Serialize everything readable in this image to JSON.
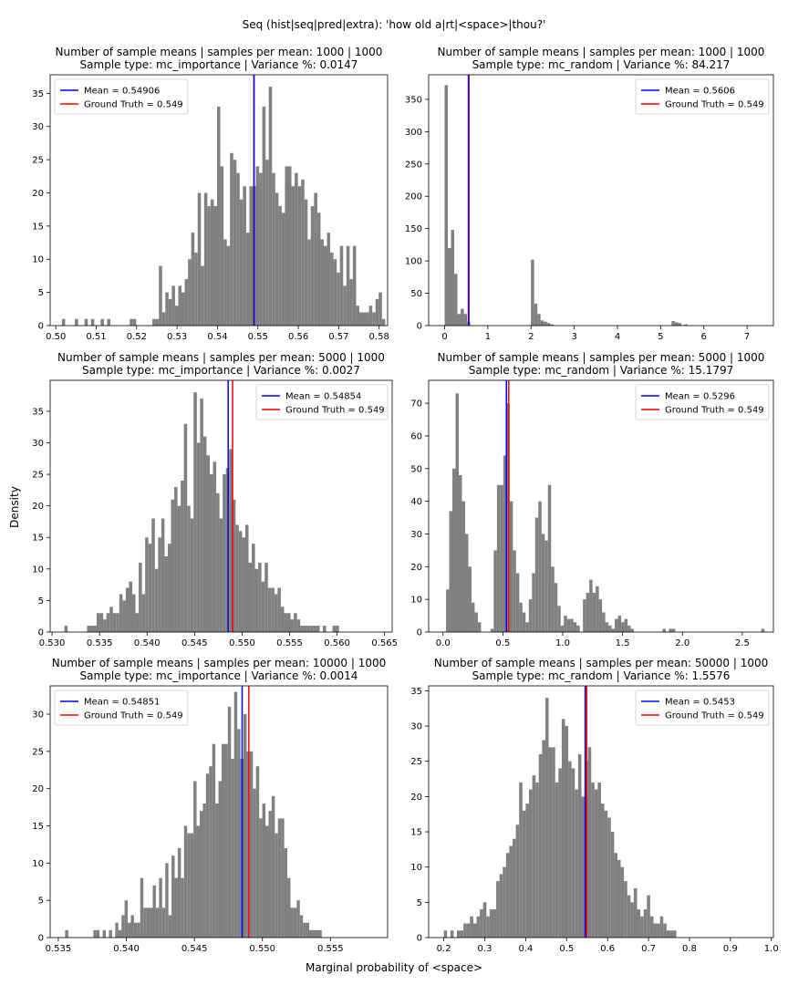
{
  "figure": {
    "suptitle": "Seq (hist|seq|pred|extra): 'how old a|rt|<space>|thou?'",
    "ylabel": "Density",
    "xlabel": "Marginal probability of <space>"
  },
  "colors": {
    "bar": "#808080",
    "mean": "#0000ff",
    "truth": "#ff0000"
  },
  "chart_data": [
    {
      "type": "bar",
      "title_line1": "Number of sample means | samples per mean: 1000 | 1000",
      "title_line2": "Sample type: mc_importance | Variance %: 0.0147",
      "xlim": [
        0.4986,
        0.5821
      ],
      "ylim": [
        0,
        37.8
      ],
      "xticks": [
        0.5,
        0.51,
        0.52,
        0.53,
        0.54,
        0.55,
        0.56,
        0.57,
        0.58
      ],
      "xtick_labels": [
        "0.50",
        "0.51",
        "0.52",
        "0.53",
        "0.54",
        "0.55",
        "0.56",
        "0.57",
        "0.58"
      ],
      "yticks": [
        0,
        5,
        10,
        15,
        20,
        25,
        30,
        35
      ],
      "bins_x0": 0.5015,
      "bins_width": 0.0008,
      "values": [
        1,
        0,
        0,
        0,
        1,
        0,
        0,
        1,
        0,
        1,
        0,
        0,
        1,
        0,
        1,
        0,
        0,
        0,
        0,
        0,
        0,
        1,
        1,
        0,
        0,
        0,
        0,
        0,
        1,
        1,
        9,
        2,
        5,
        4,
        6,
        3,
        6,
        5,
        7,
        10,
        14,
        11,
        20,
        9,
        20,
        18,
        19,
        18,
        33,
        24,
        13,
        12,
        26,
        25,
        23,
        19,
        21,
        14,
        21,
        21,
        24,
        23,
        33,
        25,
        36,
        23,
        20,
        18,
        17,
        24,
        24,
        21,
        23,
        21,
        22,
        19,
        13,
        18,
        20,
        17,
        13,
        12,
        14,
        11,
        10,
        8,
        12,
        6,
        12,
        7,
        12,
        3,
        2,
        2,
        2,
        3,
        2,
        4,
        5,
        1
      ],
      "mean": 0.54906,
      "truth": 0.549,
      "legend_position": "top-left",
      "legend": [
        "Mean = 0.54906",
        "Ground Truth = 0.549"
      ]
    },
    {
      "type": "bar",
      "title_line1": "Number of sample means | samples per mean: 1000 | 1000",
      "title_line2": "Sample type: mc_random | Variance %: 84.217",
      "xlim": [
        -0.37,
        7.61
      ],
      "ylim": [
        0,
        388
      ],
      "xticks": [
        0,
        1,
        2,
        3,
        4,
        5,
        6,
        7
      ],
      "xtick_labels": [
        "0",
        "1",
        "2",
        "3",
        "4",
        "5",
        "6",
        "7"
      ],
      "yticks": [
        0,
        50,
        100,
        150,
        200,
        250,
        300,
        350
      ],
      "bins_x0": 0.0,
      "bins_width": 0.074,
      "values": [
        372,
        120,
        148,
        80,
        18,
        26,
        18,
        6,
        0,
        0,
        0,
        0,
        0,
        0,
        0,
        0,
        0,
        0,
        0,
        0,
        0,
        0,
        0,
        0,
        0,
        0,
        0,
        102,
        34,
        18,
        8,
        6,
        4,
        2,
        0,
        0,
        0,
        0,
        0,
        0,
        0,
        0,
        0,
        0,
        0,
        0,
        0,
        0,
        0,
        0,
        0,
        0,
        0,
        0,
        0,
        0,
        0,
        0,
        0,
        0,
        0,
        0,
        0,
        0,
        0,
        0,
        0,
        0,
        0,
        0,
        0,
        7,
        5,
        4,
        0,
        2
      ],
      "mean": 0.5606,
      "truth": 0.549,
      "legend_position": "top-right",
      "legend": [
        "Mean = 0.5606",
        "Ground Truth = 0.549"
      ]
    },
    {
      "type": "bar",
      "title_line1": "Number of sample means | samples per mean: 5000 | 1000",
      "title_line2": "Sample type: mc_importance | Variance %: 0.0027",
      "xlim": [
        0.5298,
        0.5658
      ],
      "ylim": [
        0,
        39.9
      ],
      "xticks": [
        0.53,
        0.535,
        0.54,
        0.545,
        0.55,
        0.555,
        0.56,
        0.565
      ],
      "xtick_labels": [
        "0.530",
        "0.535",
        "0.540",
        "0.545",
        "0.550",
        "0.555",
        "0.560",
        "0.565"
      ],
      "yticks": [
        0,
        5,
        10,
        15,
        20,
        25,
        30,
        35
      ],
      "bins_x0": 0.5313,
      "bins_width": 0.00034,
      "values": [
        1,
        0,
        0,
        0,
        0,
        0,
        0,
        1,
        1,
        1,
        3,
        3,
        2,
        3,
        4,
        3,
        3,
        6,
        5,
        7,
        8,
        6,
        3,
        11,
        6,
        15,
        14,
        18,
        10,
        15,
        18,
        12,
        14,
        21,
        23,
        20,
        24,
        33,
        20,
        18,
        38,
        30,
        37,
        31,
        28,
        25,
        27,
        22,
        18,
        25,
        26,
        29,
        21,
        17,
        16,
        15,
        17,
        11,
        14,
        10,
        11,
        8,
        11,
        7,
        7,
        6,
        7,
        4,
        3,
        3,
        2,
        3,
        2,
        1,
        1,
        1,
        1,
        1,
        1,
        0,
        1,
        0,
        0,
        1,
        1
      ],
      "mean": 0.54854,
      "truth": 0.549,
      "legend_position": "top-right",
      "legend": [
        "Mean = 0.54854",
        "Ground Truth = 0.549"
      ]
    },
    {
      "type": "bar",
      "title_line1": "Number of sample means | samples per mean: 5000 | 1000",
      "title_line2": "Sample type: mc_random | Variance %: 15.1797",
      "xlim": [
        -0.12,
        2.76
      ],
      "ylim": [
        0,
        77
      ],
      "xticks": [
        0.0,
        0.5,
        1.0,
        1.5,
        2.0,
        2.5
      ],
      "xtick_labels": [
        "0.0",
        "0.5",
        "1.0",
        "1.5",
        "2.0",
        "2.5"
      ],
      "yticks": [
        0,
        10,
        20,
        30,
        40,
        50,
        60,
        70
      ],
      "bins_x0": 0.025,
      "bins_width": 0.0266,
      "values": [
        13,
        37,
        50,
        73,
        48,
        40,
        30,
        20,
        9,
        6,
        3,
        0,
        0,
        0,
        1,
        25,
        45,
        45,
        54,
        70,
        40,
        25,
        18,
        9,
        6,
        3,
        10,
        18,
        35,
        40,
        30,
        28,
        45,
        20,
        15,
        8,
        2,
        5,
        4,
        4,
        3,
        2,
        0,
        10,
        12,
        16,
        12,
        14,
        10,
        6,
        3,
        2,
        1,
        4,
        5,
        3,
        4,
        2,
        1,
        0,
        0,
        0,
        0,
        0,
        0,
        0,
        0,
        0,
        1,
        0,
        1,
        1,
        0,
        0,
        0,
        0,
        0,
        0,
        0,
        0,
        0,
        0,
        0,
        0,
        0,
        0,
        0,
        0,
        0,
        0,
        0,
        0,
        0,
        0,
        0,
        0,
        0,
        0,
        0,
        1
      ],
      "mean": 0.5296,
      "truth": 0.549,
      "legend_position": "top-right",
      "legend": [
        "Mean = 0.5296",
        "Ground Truth = 0.549"
      ]
    },
    {
      "type": "bar",
      "title_line1": "Number of sample means | samples per mean: 10000 | 1000",
      "title_line2": "Sample type: mc_importance | Variance %: 0.0014",
      "xlim": [
        0.5344,
        0.5592
      ],
      "ylim": [
        0,
        33.8
      ],
      "xticks": [
        0.535,
        0.54,
        0.545,
        0.55,
        0.555
      ],
      "xtick_labels": [
        "0.535",
        "0.540",
        "0.545",
        "0.550",
        "0.555"
      ],
      "yticks": [
        0,
        5,
        10,
        15,
        20,
        25,
        30
      ],
      "bins_x0": 0.5355,
      "bins_width": 0.00023,
      "values": [
        1,
        0,
        0,
        0,
        0,
        0,
        0,
        0,
        0,
        1,
        1,
        0,
        1,
        0,
        1,
        0,
        2,
        1,
        3,
        5,
        2,
        3,
        2,
        2,
        8,
        4,
        4,
        4,
        7,
        4,
        8,
        4,
        10,
        3,
        11,
        8,
        12,
        8,
        15,
        14,
        14,
        21,
        15,
        17,
        18,
        22,
        23,
        26,
        18,
        21,
        26,
        26,
        31,
        24,
        33,
        28,
        24,
        30,
        25,
        25,
        20,
        23,
        16,
        18,
        15,
        17,
        19,
        14,
        16,
        16,
        12,
        8,
        4,
        4,
        5,
        3,
        2,
        2,
        1,
        1,
        1,
        1
      ],
      "mean": 0.54851,
      "truth": 0.549,
      "legend_position": "top-left",
      "legend": [
        "Mean = 0.54851",
        "Ground Truth = 0.549"
      ]
    },
    {
      "type": "bar",
      "title_line1": "Number of sample means | samples per mean: 50000 | 1000",
      "title_line2": "Sample type: mc_random | Variance %: 1.5576",
      "xlim": [
        0.163,
        1.005
      ],
      "ylim": [
        0,
        35.7
      ],
      "xticks": [
        0.2,
        0.3,
        0.4,
        0.5,
        0.6,
        0.7,
        0.8,
        0.9,
        1.0
      ],
      "xtick_labels": [
        "0.2",
        "0.3",
        "0.4",
        "0.5",
        "0.6",
        "0.7",
        "0.8",
        "0.9",
        "1.0"
      ],
      "yticks": [
        0,
        5,
        10,
        15,
        20,
        25,
        30,
        35
      ],
      "bins_x0": 0.2,
      "bins_width": 0.008,
      "values": [
        1,
        0,
        1,
        0,
        1,
        1,
        2,
        2,
        3,
        2,
        3,
        4,
        5,
        3,
        4,
        4,
        8,
        9,
        10,
        12,
        13,
        14,
        16,
        22,
        18,
        19,
        21,
        23,
        22,
        26,
        28,
        34,
        27,
        27,
        22,
        24,
        31,
        30,
        25,
        24,
        21,
        26,
        20,
        25,
        27,
        22,
        21,
        22,
        19,
        18,
        17,
        15,
        12,
        11,
        10,
        8,
        6,
        5,
        7,
        4,
        3,
        4,
        6,
        3,
        2,
        2,
        3,
        2,
        1,
        1,
        1,
        0,
        0,
        0,
        0,
        0,
        0,
        0,
        0,
        0,
        0,
        0,
        0,
        0,
        0,
        0,
        0,
        0,
        0,
        0,
        0,
        0,
        0,
        0,
        0,
        0,
        0,
        0
      ],
      "mean": 0.5453,
      "truth": 0.549,
      "legend_position": "top-right",
      "legend": [
        "Mean = 0.5453",
        "Ground Truth = 0.549"
      ]
    }
  ]
}
